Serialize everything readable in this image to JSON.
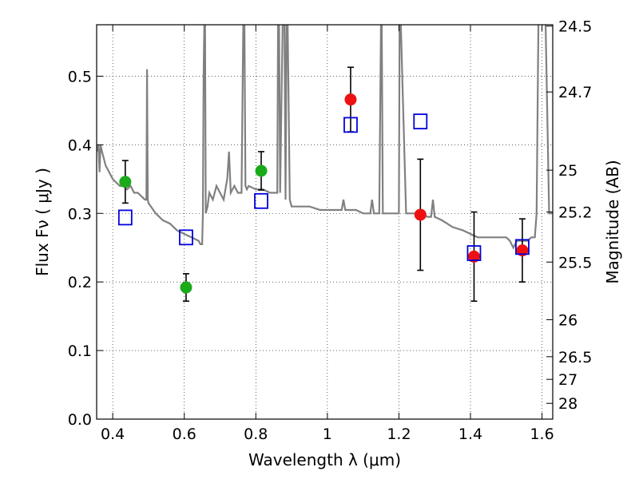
{
  "chart_data": {
    "type": "scatter",
    "title": "",
    "xlabel": "Wavelength  λ (μm)",
    "ylabel": "Flux  Fν  ( μJy )",
    "y2label": "Magnitude (AB)",
    "xlim": [
      0.355,
      1.63
    ],
    "ylim": [
      0.0,
      0.575
    ],
    "grid": true,
    "grid_style": "dotted",
    "x_ticks": [
      {
        "value": 0.4,
        "label": "0.4"
      },
      {
        "value": 0.6,
        "label": "0.6"
      },
      {
        "value": 0.8,
        "label": "0.8"
      },
      {
        "value": 1.0,
        "label": "1"
      },
      {
        "value": 1.2,
        "label": "1.2"
      },
      {
        "value": 1.4,
        "label": "1.4"
      },
      {
        "value": 1.6,
        "label": "1.6"
      }
    ],
    "y_ticks": [
      {
        "value": 0.0,
        "label": "0.0"
      },
      {
        "value": 0.1,
        "label": "0.1"
      },
      {
        "value": 0.2,
        "label": "0.2"
      },
      {
        "value": 0.3,
        "label": "0.3"
      },
      {
        "value": 0.4,
        "label": "0.4"
      },
      {
        "value": 0.5,
        "label": "0.5"
      }
    ],
    "y2_ticks": [
      {
        "flux": 0.573,
        "label": "24.5"
      },
      {
        "flux": 0.477,
        "label": "24.7"
      },
      {
        "flux": 0.363,
        "label": "25"
      },
      {
        "flux": 0.302,
        "label": "25.2"
      },
      {
        "flux": 0.229,
        "label": "25.5"
      },
      {
        "flux": 0.145,
        "label": "26"
      },
      {
        "flux": 0.091,
        "label": "26.5"
      },
      {
        "flux": 0.058,
        "label": "27"
      },
      {
        "flux": 0.023,
        "label": "28"
      }
    ],
    "model_spectrum": {
      "color": "#808080",
      "x": [
        0.355,
        0.36,
        0.363,
        0.366,
        0.37,
        0.375,
        0.38,
        0.39,
        0.4,
        0.41,
        0.42,
        0.43,
        0.44,
        0.45,
        0.46,
        0.47,
        0.48,
        0.49,
        0.494,
        0.496,
        0.498,
        0.5,
        0.52,
        0.54,
        0.56,
        0.58,
        0.6,
        0.62,
        0.64,
        0.645,
        0.65,
        0.652,
        0.654,
        0.656,
        0.658,
        0.66,
        0.665,
        0.67,
        0.68,
        0.69,
        0.7,
        0.71,
        0.72,
        0.725,
        0.73,
        0.74,
        0.75,
        0.76,
        0.765,
        0.768,
        0.771,
        0.775,
        0.78,
        0.8,
        0.82,
        0.84,
        0.85,
        0.86,
        0.862,
        0.865,
        0.868,
        0.875,
        0.88,
        0.883,
        0.886,
        0.889,
        0.895,
        0.9,
        0.92,
        0.95,
        0.98,
        1.0,
        1.02,
        1.04,
        1.045,
        1.05,
        1.08,
        1.1,
        1.12,
        1.125,
        1.13,
        1.145,
        1.15,
        1.152,
        1.155,
        1.19,
        1.2,
        1.202,
        1.205,
        1.22,
        1.24,
        1.26,
        1.28,
        1.29,
        1.295,
        1.3,
        1.32,
        1.35,
        1.38,
        1.4,
        1.42,
        1.44,
        1.46,
        1.48,
        1.5,
        1.51,
        1.52,
        1.525,
        1.53,
        1.55,
        1.56,
        1.57,
        1.58,
        1.585,
        1.59,
        1.6,
        1.61,
        1.62,
        1.63
      ],
      "y": [
        0.39,
        0.4,
        0.36,
        0.4,
        0.39,
        0.38,
        0.37,
        0.36,
        0.35,
        0.345,
        0.34,
        0.34,
        0.335,
        0.34,
        0.33,
        0.33,
        0.325,
        0.32,
        0.32,
        0.51,
        0.32,
        0.315,
        0.3,
        0.29,
        0.285,
        0.275,
        0.27,
        0.265,
        0.26,
        0.255,
        0.255,
        0.3,
        0.5,
        0.58,
        0.58,
        0.3,
        0.31,
        0.33,
        0.32,
        0.34,
        0.33,
        0.32,
        0.35,
        0.39,
        0.33,
        0.34,
        0.33,
        0.33,
        0.58,
        0.58,
        0.34,
        0.335,
        0.34,
        0.335,
        0.335,
        0.33,
        0.33,
        0.33,
        0.58,
        0.58,
        0.33,
        0.58,
        0.58,
        0.32,
        0.58,
        0.58,
        0.32,
        0.31,
        0.31,
        0.31,
        0.305,
        0.305,
        0.305,
        0.305,
        0.32,
        0.305,
        0.305,
        0.3,
        0.3,
        0.32,
        0.3,
        0.3,
        0.58,
        0.58,
        0.3,
        0.3,
        0.3,
        0.58,
        0.58,
        0.3,
        0.3,
        0.3,
        0.295,
        0.295,
        0.32,
        0.295,
        0.29,
        0.28,
        0.275,
        0.27,
        0.265,
        0.265,
        0.265,
        0.265,
        0.265,
        0.26,
        0.25,
        0.255,
        0.26,
        0.26,
        0.26,
        0.265,
        0.265,
        0.3,
        0.58,
        0.58,
        0.58,
        0.3,
        0.3
      ]
    },
    "series": [
      {
        "marker": "circle",
        "color": "#1aaa1a",
        "x": [
          0.435,
          0.605,
          0.815
        ],
        "y": [
          0.346,
          0.192,
          0.362
        ],
        "err": [
          0.031,
          0.02,
          0.028
        ]
      },
      {
        "marker": "circle",
        "color": "#ee1111",
        "x": [
          1.065,
          1.26,
          1.41,
          1.545
        ],
        "y": [
          0.466,
          0.298,
          0.237,
          0.246
        ],
        "err": [
          0.047,
          0.081,
          0.065,
          0.046
        ]
      },
      {
        "marker": "open-square",
        "color": "#0000dd",
        "x": [
          0.435,
          0.605,
          0.815,
          1.065,
          1.26,
          1.41,
          1.545
        ],
        "y": [
          0.294,
          0.265,
          0.318,
          0.429,
          0.434,
          0.242,
          0.251
        ]
      }
    ]
  }
}
